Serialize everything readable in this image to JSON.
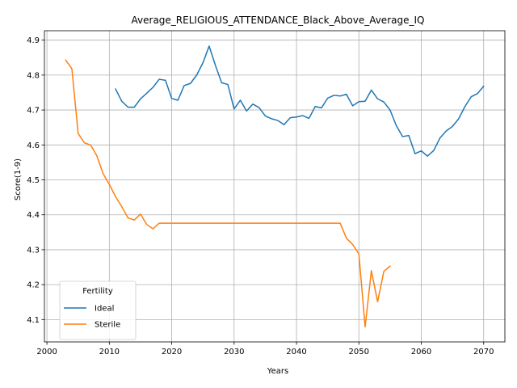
{
  "chart_data": {
    "type": "line",
    "title": "Average_RELIGIOUS_ATTENDANCE_Black_Above_Average_IQ",
    "xlabel": "Years",
    "ylabel": "Score(1-9)",
    "xlim": [
      1999.6,
      2073.4
    ],
    "ylim": [
      4.036,
      4.927
    ],
    "xticks": [
      2000,
      2010,
      2020,
      2030,
      2040,
      2050,
      2060,
      2070
    ],
    "yticks": [
      4.1,
      4.2,
      4.3,
      4.4,
      4.5,
      4.6,
      4.7,
      4.8,
      4.9
    ],
    "grid": true,
    "legend": {
      "title": "Fertility",
      "placement": "lower-left"
    },
    "series": [
      {
        "name": "Ideal",
        "color": "#1f77b4",
        "x": [
          2011,
          2012,
          2013,
          2014,
          2015,
          2016,
          2017,
          2018,
          2019,
          2020,
          2021,
          2022,
          2023,
          2024,
          2025,
          2026,
          2027,
          2028,
          2029,
          2030,
          2031,
          2032,
          2033,
          2034,
          2035,
          2036,
          2037,
          2038,
          2039,
          2040,
          2041,
          2042,
          2043,
          2044,
          2045,
          2046,
          2047,
          2048,
          2049,
          2050,
          2051,
          2052,
          2053,
          2054,
          2055,
          2056,
          2057,
          2058,
          2059,
          2060,
          2061,
          2062,
          2063,
          2064,
          2065,
          2066,
          2067,
          2068,
          2069,
          2070
        ],
        "y": [
          4.76,
          4.725,
          4.708,
          4.708,
          4.732,
          4.748,
          4.765,
          4.788,
          4.785,
          4.733,
          4.728,
          4.77,
          4.776,
          4.8,
          4.835,
          4.883,
          4.828,
          4.778,
          4.773,
          4.703,
          4.728,
          4.697,
          4.717,
          4.707,
          4.683,
          4.675,
          4.67,
          4.658,
          4.678,
          4.68,
          4.684,
          4.676,
          4.71,
          4.706,
          4.734,
          4.742,
          4.74,
          4.745,
          4.712,
          4.724,
          4.725,
          4.757,
          4.732,
          4.723,
          4.7,
          4.655,
          4.624,
          4.627,
          4.575,
          4.583,
          4.568,
          4.584,
          4.62,
          4.64,
          4.653,
          4.675,
          4.71,
          4.738,
          4.747,
          4.768
        ]
      },
      {
        "name": "Sterile",
        "color": "#ff7f0e",
        "x": [
          2003,
          2004,
          2005,
          2006,
          2007,
          2008,
          2009,
          2010,
          2011,
          2012,
          2013,
          2014,
          2015,
          2016,
          2017,
          2018,
          2019,
          2020,
          2021,
          2022,
          2023,
          2024,
          2025,
          2026,
          2027,
          2028,
          2029,
          2030,
          2031,
          2032,
          2033,
          2034,
          2035,
          2036,
          2037,
          2038,
          2039,
          2040,
          2041,
          2042,
          2043,
          2044,
          2045,
          2046,
          2047,
          2048,
          2049,
          2050,
          2051,
          2052,
          2053,
          2054,
          2055
        ],
        "y": [
          4.843,
          4.818,
          4.633,
          4.606,
          4.6,
          4.569,
          4.518,
          4.487,
          4.452,
          4.423,
          4.391,
          4.385,
          4.402,
          4.372,
          4.36,
          4.376,
          4.376,
          4.376,
          4.376,
          4.376,
          4.376,
          4.376,
          4.376,
          4.376,
          4.376,
          4.376,
          4.376,
          4.376,
          4.376,
          4.376,
          4.376,
          4.376,
          4.376,
          4.376,
          4.376,
          4.376,
          4.376,
          4.376,
          4.376,
          4.376,
          4.376,
          4.376,
          4.376,
          4.376,
          4.376,
          4.333,
          4.315,
          4.288,
          4.079,
          4.24,
          4.151,
          4.238,
          4.253
        ]
      }
    ]
  }
}
